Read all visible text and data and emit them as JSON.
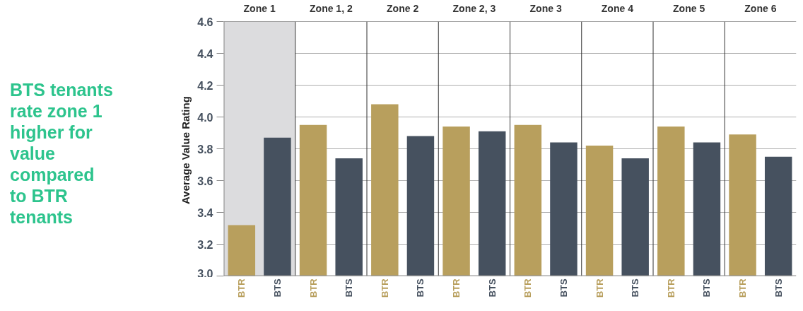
{
  "chart_data": {
    "type": "bar",
    "categories": [
      "Zone 1",
      "Zone 1, 2",
      "Zone 2",
      "Zone 2, 3",
      "Zone 3",
      "Zone 4",
      "Zone 5",
      "Zone 6"
    ],
    "series": [
      {
        "name": "BTR",
        "color": "#b89f5d",
        "values": [
          3.32,
          3.95,
          4.08,
          3.94,
          3.95,
          3.82,
          3.94,
          3.89
        ]
      },
      {
        "name": "BTS",
        "color": "#46515f",
        "values": [
          3.87,
          3.74,
          3.88,
          3.91,
          3.84,
          3.74,
          3.84,
          3.75
        ]
      }
    ],
    "ylabel": "Average Value  Rating",
    "ylim": [
      3.0,
      4.6
    ],
    "yticks": [
      {
        "value": 3,
        "label": "3.0"
      },
      3.2,
      3.4,
      3.6,
      3.8,
      {
        "value": 4,
        "label": "4.0"
      },
      4.2,
      4.4,
      4.6
    ],
    "grid": "y",
    "bands": [
      {
        "axis": "x",
        "from": "Zone 1",
        "to": "Zone 1",
        "color": "#dcdcde"
      }
    ],
    "annotations": [
      "BTS tenants rate zone 1 higher for value compared to BTR tenants"
    ]
  }
}
